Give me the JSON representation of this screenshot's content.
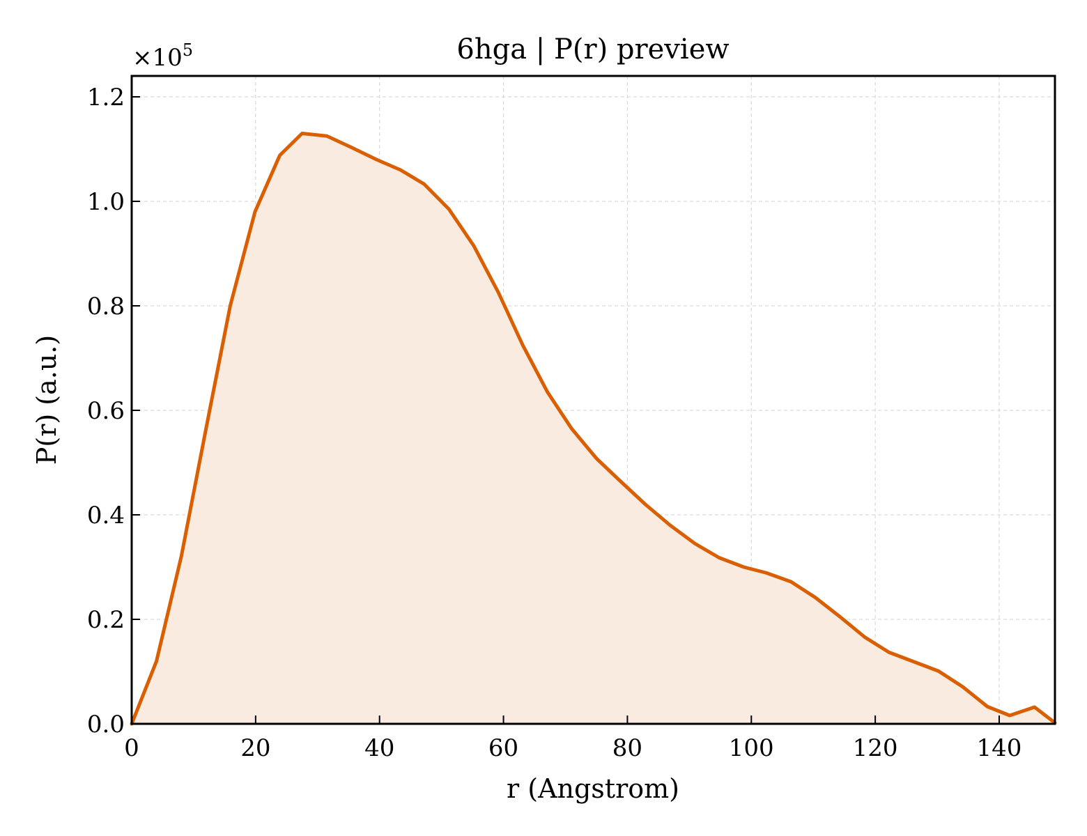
{
  "chart_data": {
    "type": "area",
    "title": "6hga | P(r) preview",
    "xlabel": "r (Angstrom)",
    "ylabel": "P(r) (a.u.)",
    "y_multiplier_base": "×10",
    "y_multiplier_exp": "5",
    "xlim": [
      0,
      149
    ],
    "ylim": [
      0,
      1.24
    ],
    "x_ticks": [
      0,
      20,
      40,
      60,
      80,
      100,
      120,
      140
    ],
    "y_ticks": [
      0.0,
      0.2,
      0.4,
      0.6,
      0.8,
      1.0,
      1.2
    ],
    "x_tick_labels": [
      "0",
      "20",
      "40",
      "60",
      "80",
      "100",
      "120",
      "140"
    ],
    "y_tick_labels": [
      "0.0",
      "0.2",
      "0.4",
      "0.6",
      "0.8",
      "1.0",
      "1.2"
    ],
    "grid": true,
    "line_color": "#d95f02",
    "fill_color": "#f9ebe0",
    "series": [
      {
        "x": [
          0,
          4,
          8,
          12,
          15.9,
          19.9,
          23.9,
          27.5,
          31.5,
          35.5,
          39.5,
          43.4,
          47.2,
          51.2,
          55.2,
          59.2,
          63.1,
          67.1,
          71,
          75,
          79,
          82.9,
          86.9,
          90.9,
          94.8,
          98.8,
          102.4,
          106.4,
          110.3,
          114.3,
          118.3,
          122.2,
          126.2,
          130.2,
          134.1,
          138.1,
          141.7,
          145.7,
          149
        ],
        "y": [
          0.0,
          0.12,
          0.32,
          0.565,
          0.8,
          0.98,
          1.088,
          1.13,
          1.125,
          1.103,
          1.08,
          1.06,
          1.033,
          0.985,
          0.915,
          0.825,
          0.725,
          0.635,
          0.565,
          0.508,
          0.463,
          0.42,
          0.38,
          0.345,
          0.318,
          0.3,
          0.289,
          0.272,
          0.242,
          0.205,
          0.166,
          0.137,
          0.119,
          0.101,
          0.071,
          0.033,
          0.016,
          0.032,
          0.002
        ]
      }
    ]
  }
}
